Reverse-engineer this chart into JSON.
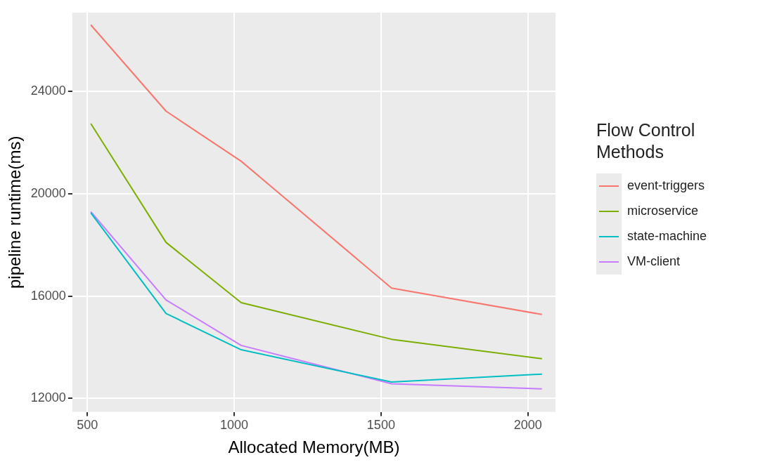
{
  "chart_data": {
    "type": "line",
    "xlabel": "Allocated Memory(MB)",
    "ylabel": "pipeline runtime(ms)",
    "legend_title": "Flow Control Methods",
    "x": [
      512,
      768,
      1024,
      1536,
      2048
    ],
    "series": [
      {
        "name": "event-triggers",
        "color": "#f8766d",
        "values": [
          26600,
          23230,
          21270,
          16310,
          15280
        ]
      },
      {
        "name": "microservice",
        "color": "#7cae00",
        "values": [
          22740,
          18100,
          15740,
          14310,
          13550
        ]
      },
      {
        "name": "state-machine",
        "color": "#00bfc4",
        "values": [
          19250,
          15320,
          13900,
          12640,
          12950
        ]
      },
      {
        "name": "VM-client",
        "color": "#c77cff",
        "values": [
          19300,
          15850,
          14070,
          12570,
          12370
        ]
      }
    ],
    "xlim": [
      449,
      2094
    ],
    "xticks": [
      500,
      1000,
      1500,
      2000
    ],
    "ylim": [
      11470,
      27080
    ],
    "yticks": [
      12000,
      16000,
      20000,
      24000
    ],
    "grid": true,
    "legend": "right",
    "marker": "none",
    "line_style": "solid"
  }
}
